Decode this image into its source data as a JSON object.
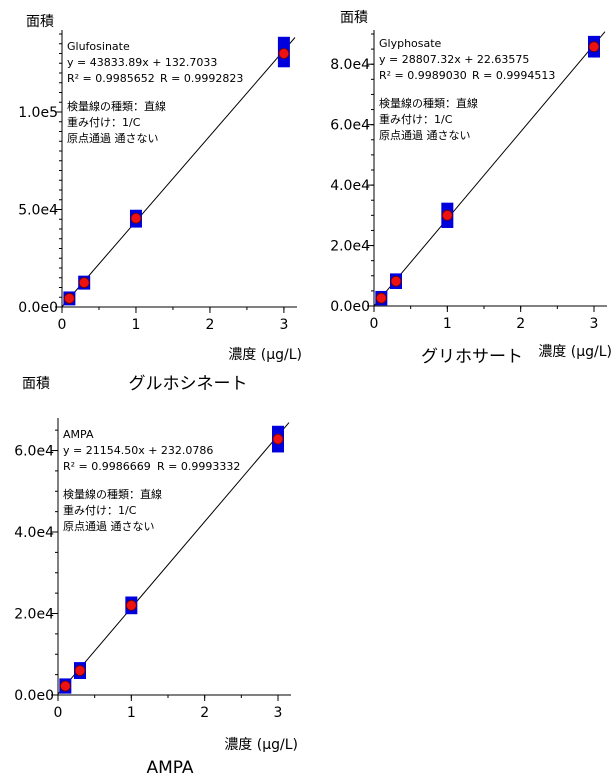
{
  "chart_data": [
    {
      "type": "scatter",
      "caption": "グルホシネート",
      "ylabel": "面積",
      "xlabel": "濃度 (µg/L)",
      "compound": "Glufosinate",
      "equation": "y = 43833.89x + 132.7033",
      "r2_text": "R² = 0.9985652",
      "r_text": "R = 0.9992823",
      "curve_type": "検量線の種類：直線",
      "weighting": "重み付け：1/C",
      "origin": "原点通過 通さない",
      "xlim": [
        0,
        3.15
      ],
      "ylim": [
        0,
        140000
      ],
      "xticks": [
        0,
        1,
        2,
        3
      ],
      "xtick_labels": [
        "0",
        "1",
        "2",
        "3"
      ],
      "yticks": [
        0,
        50000,
        100000
      ],
      "ytick_labels": [
        "0.0e0",
        "5.0e4",
        "1.0e5"
      ],
      "fit": {
        "slope": 43833.89,
        "intercept": 132.7033,
        "x": [
          0,
          3.15
        ]
      },
      "points": [
        {
          "x": 0.1,
          "y": 4400
        },
        {
          "x": 0.3,
          "y": 12500
        },
        {
          "x": 1,
          "y": 45500
        },
        {
          "x": 3,
          "y": 130000
        }
      ],
      "replicate_spread": [
        {
          "x": 0.1,
          "y_min": 3900,
          "y_max": 4900
        },
        {
          "x": 0.3,
          "y_min": 12000,
          "y_max": 13000
        },
        {
          "x": 1,
          "y_min": 43800,
          "y_max": 46800
        },
        {
          "x": 3,
          "y_min": 126000,
          "y_max": 135500
        }
      ]
    },
    {
      "type": "scatter",
      "caption": "グリホサート",
      "ylabel": "面積",
      "xlabel": "濃度 (µg/L)",
      "compound": "Glyphosate",
      "equation": "y = 28807.32x + 22.63575",
      "r2_text": "R² = 0.9989030",
      "r_text": "R = 0.9994513",
      "curve_type": "検量線の種類：直線",
      "weighting": "重み付け：1/C",
      "origin": "原点通過 通さない",
      "xlim": [
        0,
        3.15
      ],
      "ylim": [
        0,
        90000
      ],
      "xticks": [
        0,
        1,
        2,
        3
      ],
      "xtick_labels": [
        "0",
        "1",
        "2",
        "3"
      ],
      "yticks": [
        0,
        20000,
        40000,
        60000,
        80000
      ],
      "ytick_labels": [
        "0.0e0",
        "2.0e4",
        "4.0e4",
        "6.0e4",
        "8.0e4"
      ],
      "fit": {
        "slope": 28807.32,
        "intercept": 22.63575,
        "x": [
          0,
          3.15
        ]
      },
      "points": [
        {
          "x": 0.1,
          "y": 2600
        },
        {
          "x": 0.3,
          "y": 8200
        },
        {
          "x": 1,
          "y": 30000
        },
        {
          "x": 3,
          "y": 85800
        }
      ],
      "replicate_spread": [
        {
          "x": 0.1,
          "y_min": 2200,
          "y_max": 3000
        },
        {
          "x": 0.3,
          "y_min": 7600,
          "y_max": 8800
        },
        {
          "x": 1,
          "y_min": 27800,
          "y_max": 32200
        },
        {
          "x": 3,
          "y_min": 84200,
          "y_max": 87400
        }
      ]
    },
    {
      "type": "scatter",
      "caption": "AMPA",
      "ylabel": "面積",
      "xlabel": "濃度 (µg/L)",
      "compound": "AMPA",
      "equation": "y = 21154.50x + 232.0786",
      "r2_text": "R² = 0.9986669",
      "r_text": "R = 0.9993332",
      "curve_type": "検量線の種類：直線",
      "weighting": "重み付け：1/C",
      "origin": "原点通過 通さない",
      "xlim": [
        0,
        3.15
      ],
      "ylim": [
        0,
        67000
      ],
      "xticks": [
        0,
        1,
        2,
        3
      ],
      "xtick_labels": [
        "0",
        "1",
        "2",
        "3"
      ],
      "yticks": [
        0,
        20000,
        40000,
        60000
      ],
      "ytick_labels": [
        "0.0e0",
        "2.0e4",
        "4.0e4",
        "6.0e4"
      ],
      "fit": {
        "slope": 21154.5,
        "intercept": 232.0786,
        "x": [
          0,
          3.15
        ]
      },
      "points": [
        {
          "x": 0.1,
          "y": 2200
        },
        {
          "x": 0.3,
          "y": 6000
        },
        {
          "x": 1,
          "y": 22000
        },
        {
          "x": 3,
          "y": 62800
        }
      ],
      "replicate_spread": [
        {
          "x": 0.1,
          "y_min": 1800,
          "y_max": 2600
        },
        {
          "x": 0.3,
          "y_min": 5400,
          "y_max": 6600
        },
        {
          "x": 1,
          "y_min": 21300,
          "y_max": 22700
        },
        {
          "x": 3,
          "y_min": 61000,
          "y_max": 64600
        }
      ]
    }
  ],
  "colors": {
    "replicate_fill": "#0000dd",
    "mean_fill": "#ee1111",
    "mean_stroke": "#660000",
    "axis": "#000000",
    "fit_line": "#000000"
  }
}
